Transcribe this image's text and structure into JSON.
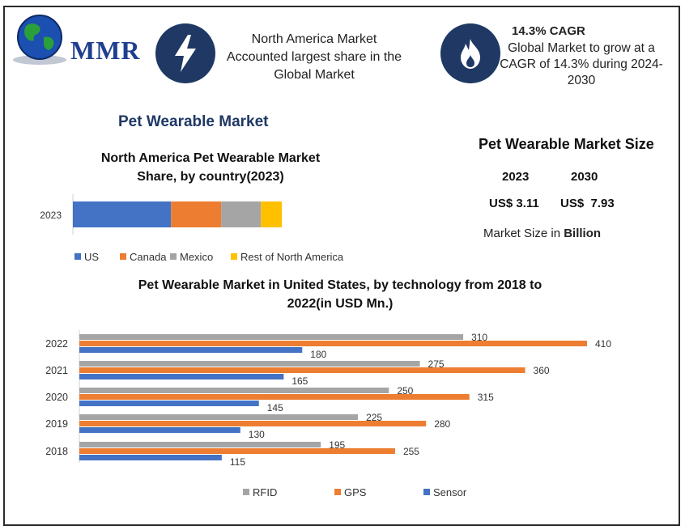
{
  "logo": {
    "text": "MMR"
  },
  "header": {
    "highlight1": {
      "icon": "lightning-icon",
      "line1": "North America Market",
      "line2": "Accounted largest share in the",
      "line3": "Global Market"
    },
    "highlight2": {
      "icon": "flame-icon",
      "title": "14.3% CAGR",
      "line1": "Global Market to grow at a",
      "line2": "CAGR of 14.3% during 2024-",
      "line3": "2030"
    }
  },
  "main_title": "Pet Wearable Market",
  "market_size": {
    "title": "Pet Wearable Market Size",
    "years": [
      "2023",
      "2030"
    ],
    "values": [
      "US$ 3.11",
      "US$  7.93"
    ],
    "note_prefix": "Market Size in ",
    "note_unit": "Billion"
  },
  "colors": {
    "us": "#4472c4",
    "canada": "#ed7d31",
    "mexico": "#a5a5a5",
    "rest": "#ffc000",
    "rfid": "#a5a5a5",
    "gps": "#ed7d31",
    "sensor": "#4472c4",
    "navy": "#1f3864"
  },
  "chart_data": [
    {
      "type": "bar",
      "orientation": "horizontal-stacked",
      "title_line1": "North America Pet Wearable Market",
      "title_line2": "Share, by country(2023)",
      "categories": [
        "2023"
      ],
      "series": [
        {
          "name": "US",
          "values": [
            47
          ]
        },
        {
          "name": "Canada",
          "values": [
            24
          ]
        },
        {
          "name": "Mexico",
          "values": [
            19
          ]
        },
        {
          "name": "Rest of North America",
          "values": [
            10
          ]
        }
      ],
      "legend": "bottom"
    },
    {
      "type": "bar",
      "orientation": "horizontal-grouped",
      "title_line1": "Pet Wearable Market in United States, by technology from 2018 to",
      "title_line2": "2022(in USD Mn.)",
      "categories": [
        "2022",
        "2021",
        "2020",
        "2019",
        "2018"
      ],
      "series": [
        {
          "name": "RFID",
          "values": [
            310,
            275,
            250,
            225,
            195
          ]
        },
        {
          "name": "GPS",
          "values": [
            410,
            360,
            315,
            280,
            255
          ]
        },
        {
          "name": "Sensor",
          "values": [
            180,
            165,
            145,
            130,
            115
          ]
        }
      ],
      "xlim": [
        0,
        410
      ],
      "legend": "bottom",
      "data_labels": true
    }
  ]
}
